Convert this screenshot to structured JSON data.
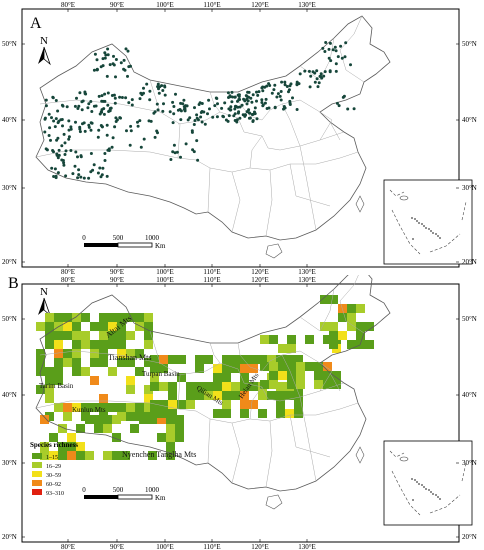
{
  "panelA": {
    "letter": "A",
    "north": "N",
    "lon_ticks": [
      "80°E",
      "90°E",
      "100°E",
      "110°E",
      "120°E",
      "130°E"
    ],
    "lat_ticks": [
      "50°N",
      "40°N",
      "30°N",
      "20°N"
    ],
    "scale": {
      "t0": "0",
      "t1": "500",
      "t2": "1000",
      "unit": "Km"
    }
  },
  "panelB": {
    "letter": "B",
    "north": "N",
    "lon_ticks": [
      "80°E",
      "90°E",
      "100°E",
      "110°E",
      "120°E",
      "130°E"
    ],
    "lat_ticks": [
      "50°N",
      "40°N",
      "30°N",
      "20°N"
    ],
    "scale": {
      "t0": "0",
      "t1": "500",
      "t2": "1000",
      "unit": "Km"
    },
    "labels": {
      "altai": "Altai Mts",
      "tianshan": "Tianshan Mts",
      "turpan": "Turpan Basin",
      "tarim": "Tarim Basin",
      "kunlun": "Kunlun Mts",
      "qilian": "Qilian Mts",
      "helan": "Helan Mts",
      "nyenchen": "Nyenchen Tanglha Mts"
    },
    "legend": {
      "title": "Species richness",
      "items": [
        {
          "label": "1–15",
          "color": "#5a9e1a"
        },
        {
          "label": "16–29",
          "color": "#a8cc2a"
        },
        {
          "label": "30–59",
          "color": "#f2e01a"
        },
        {
          "label": "60–92",
          "color": "#f08a1a"
        },
        {
          "label": "93–310",
          "color": "#e02010"
        }
      ]
    }
  },
  "colors": {
    "point": "#16463a",
    "outline": "#5a5a5a",
    "province": "#aaaaaa"
  }
}
